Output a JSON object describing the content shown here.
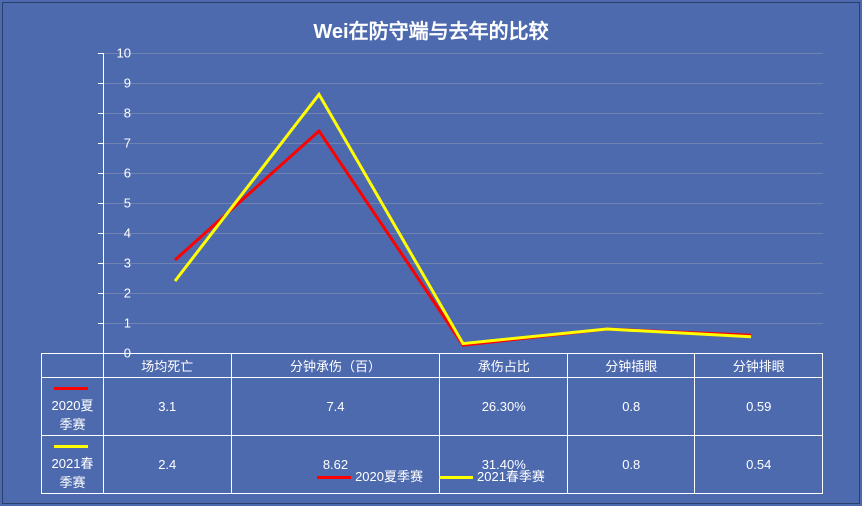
{
  "chart": {
    "title": "Wei在防守端与去年的比较",
    "title_fontsize": 20,
    "background_color": "#4d6aaf",
    "grid_color": "#6f82b0",
    "axis_color": "#ffffff",
    "text_color": "#ffffff",
    "label_fontsize": 13,
    "line_width": 3,
    "ylim": [
      0,
      10
    ],
    "ytick_step": 1,
    "yticks": [
      0,
      1,
      2,
      3,
      4,
      5,
      6,
      7,
      8,
      9,
      10
    ],
    "categories": [
      "场均死亡",
      "分钟承伤（百）",
      "承伤占比",
      "分钟插眼",
      "分钟排眼"
    ],
    "series": [
      {
        "name": "2020夏季赛",
        "color": "#ff0000",
        "values_numeric": [
          3.1,
          7.4,
          0.263,
          0.8,
          0.59
        ],
        "values_display": [
          "3.1",
          "7.4",
          "26.30%",
          "0.8",
          "0.59"
        ]
      },
      {
        "name": "2021春季赛",
        "color": "#ffff00",
        "values_numeric": [
          2.4,
          8.62,
          0.314,
          0.8,
          0.54
        ],
        "values_display": [
          "2.4",
          "8.62",
          "31.40%",
          "0.8",
          "0.54"
        ]
      }
    ],
    "legend_position_bottom": 18,
    "table_fontsize": 13,
    "table_row_height": 24
  }
}
